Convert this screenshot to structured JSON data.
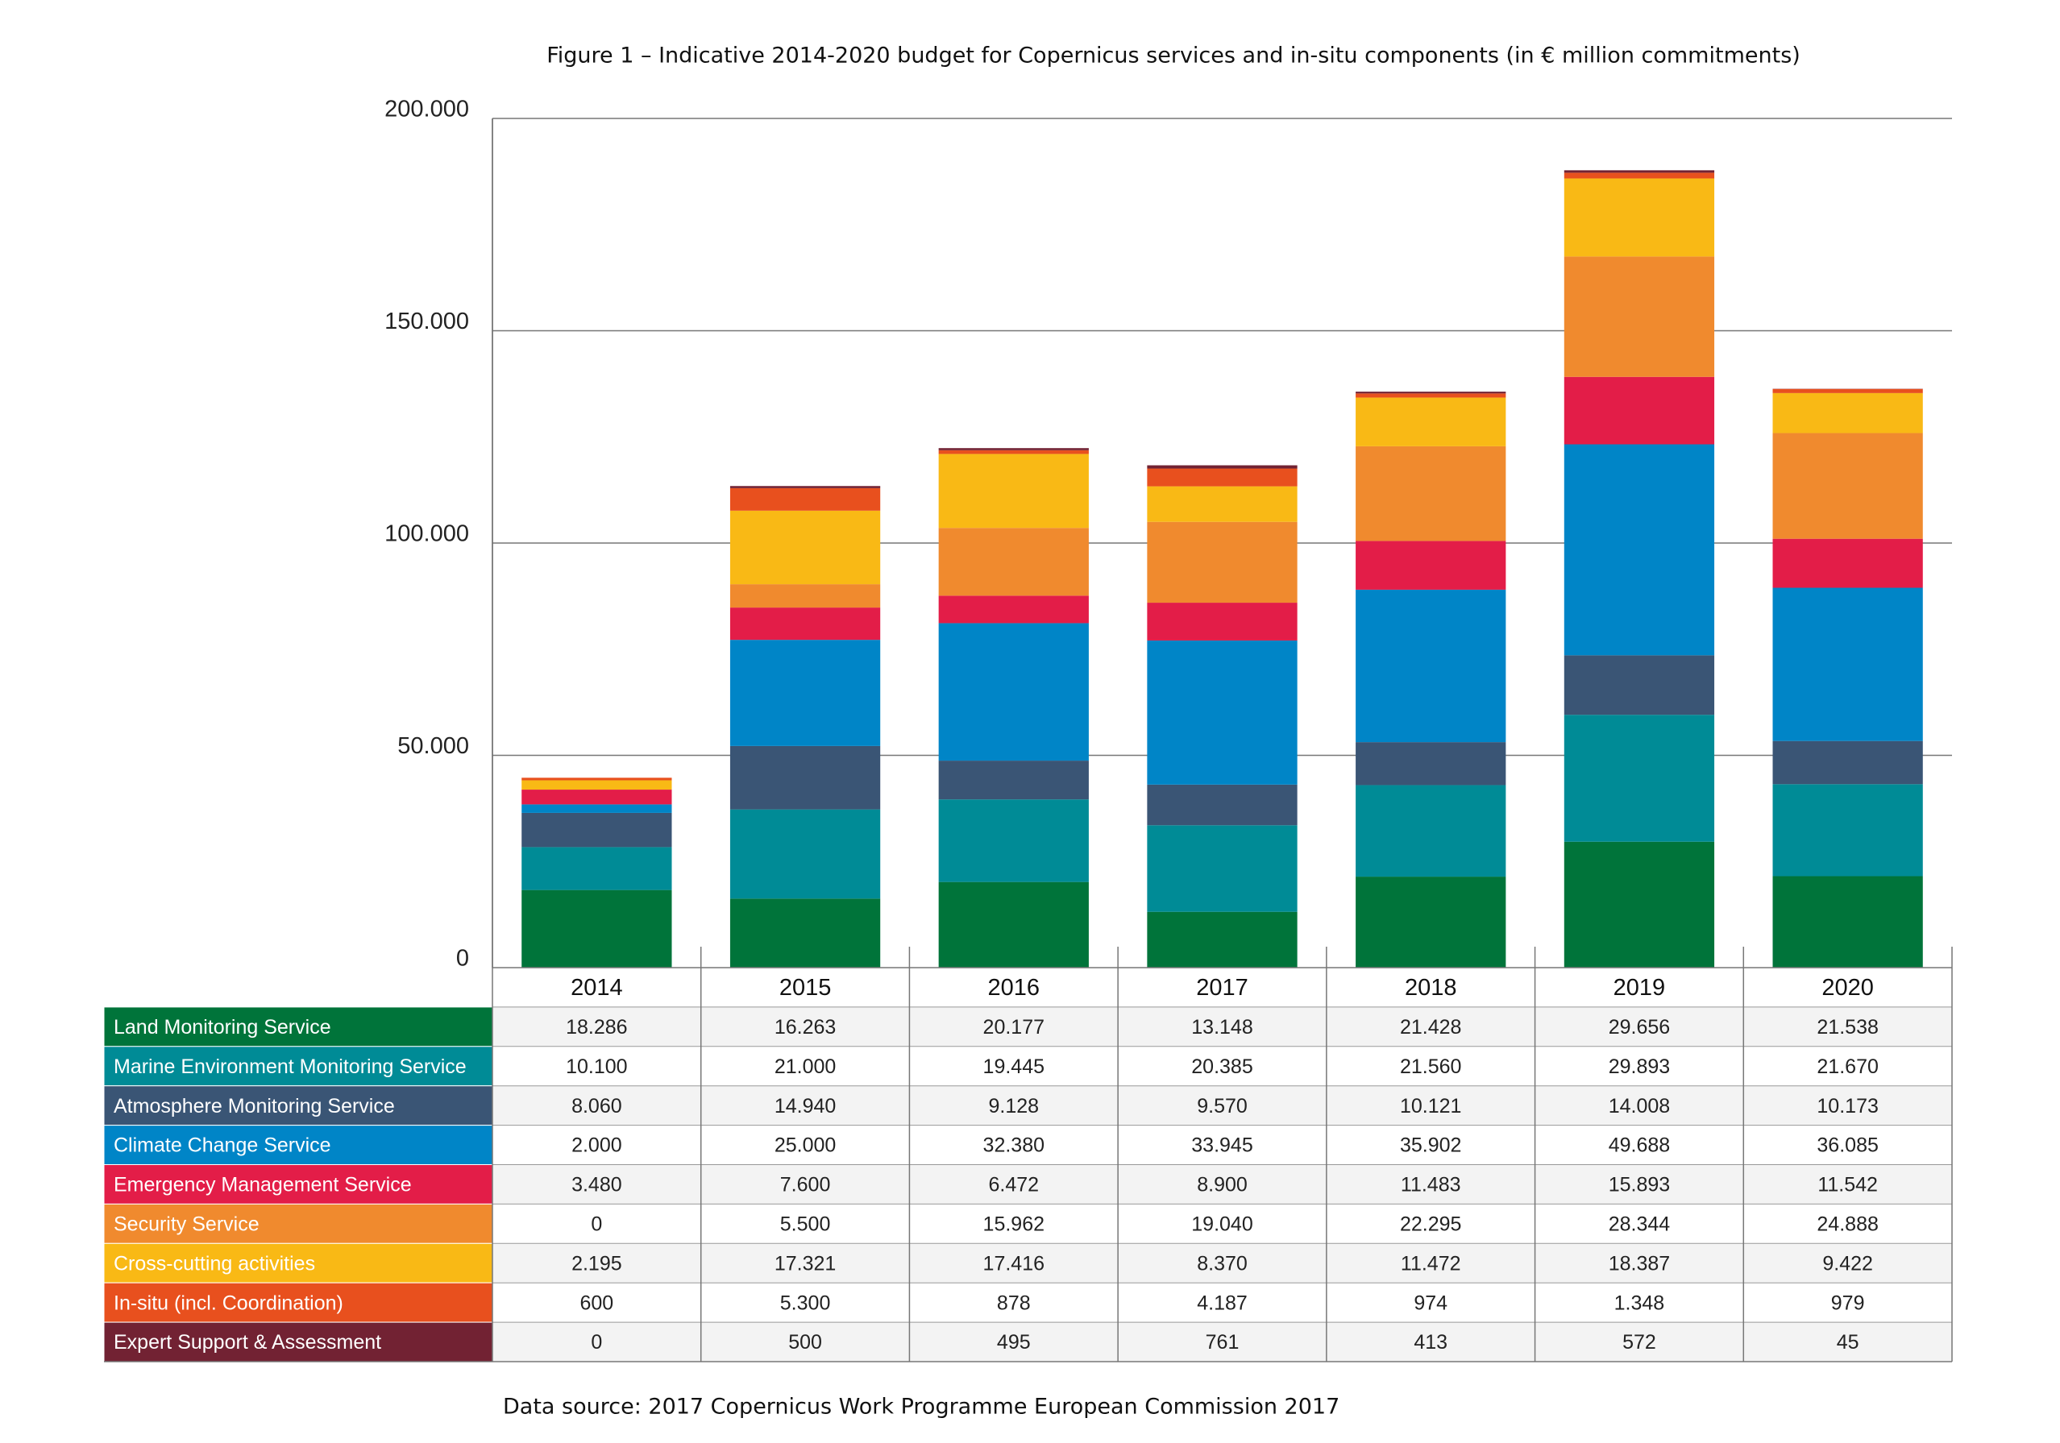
{
  "chart_data": {
    "type": "stacked_bar",
    "title": "Figure 1 – Indicative 2014-2020 budget for Copernicus services and in-situ components (in € million commitments)",
    "source": "Data source: 2017 Copernicus Work Programme European Commission 2017",
    "categories": [
      "2014",
      "2015",
      "2016",
      "2017",
      "2018",
      "2019",
      "2020"
    ],
    "ylim": [
      0,
      200000
    ],
    "yticks": [
      0,
      {
        "value": 50000,
        "label": "50.000"
      },
      {
        "value": 100000,
        "label": "100.000"
      },
      {
        "value": 150000,
        "label": "150.000"
      },
      {
        "value": 200000,
        "label": "200.000"
      }
    ],
    "grid": true,
    "series": [
      {
        "name": "Land Monitoring Service",
        "color": "#00743a",
        "values": [
          18286,
          16263,
          20177,
          13148,
          21428,
          29656,
          21538
        ],
        "value_labels": [
          "18.286",
          "16.263",
          "20.177",
          "13.148",
          "21.428",
          "29.656",
          "21.538"
        ]
      },
      {
        "name": "Marine Environment Monitoring Service",
        "color": "#008b96",
        "values": [
          10100,
          21000,
          19445,
          20385,
          21560,
          29893,
          21670
        ],
        "value_labels": [
          "10.100",
          "21.000",
          "19.445",
          "20.385",
          "21.560",
          "29.893",
          "21.670"
        ]
      },
      {
        "name": "Atmosphere Monitoring Service",
        "color": "#3a5575",
        "values": [
          8060,
          14940,
          9128,
          9570,
          10121,
          14008,
          10173
        ],
        "value_labels": [
          "8.060",
          "14.940",
          "9.128",
          "9.570",
          "10.121",
          "14.008",
          "10.173"
        ]
      },
      {
        "name": "Climate Change Service",
        "color": "#0085c7",
        "values": [
          2000,
          25000,
          32380,
          33945,
          35902,
          49688,
          36085
        ],
        "value_labels": [
          "2.000",
          "25.000",
          "32.380",
          "33.945",
          "35.902",
          "49.688",
          "36.085"
        ]
      },
      {
        "name": "Emergency Management Service",
        "color": "#e31d48",
        "values": [
          3480,
          7600,
          6472,
          8900,
          11483,
          15893,
          11542
        ],
        "value_labels": [
          "3.480",
          "7.600",
          "6.472",
          "8.900",
          "11.483",
          "15.893",
          "11.542"
        ]
      },
      {
        "name": "Security Service",
        "color": "#f08a2e",
        "values": [
          0,
          5500,
          15962,
          19040,
          22295,
          28344,
          24888
        ],
        "value_labels": [
          "0",
          "5.500",
          "15.962",
          "19.040",
          "22.295",
          "28.344",
          "24.888"
        ]
      },
      {
        "name": "Cross-cutting activities",
        "color": "#f9b915",
        "values": [
          2195,
          17321,
          17416,
          8370,
          11472,
          18387,
          9422
        ],
        "value_labels": [
          "2.195",
          "17.321",
          "17.416",
          "8.370",
          "11.472",
          "18.387",
          "9.422"
        ]
      },
      {
        "name": "In-situ (incl. Coordination)",
        "color": "#e8501e",
        "values": [
          600,
          5300,
          878,
          4187,
          974,
          1348,
          979
        ],
        "value_labels": [
          "600",
          "5.300",
          "878",
          "4.187",
          "974",
          "1.348",
          "979"
        ]
      },
      {
        "name": "Expert Support & Assessment",
        "color": "#722233",
        "values": [
          0,
          500,
          495,
          761,
          413,
          572,
          45
        ],
        "value_labels": [
          "0",
          "500",
          "495",
          "761",
          "413",
          "572",
          "45"
        ]
      }
    ]
  }
}
